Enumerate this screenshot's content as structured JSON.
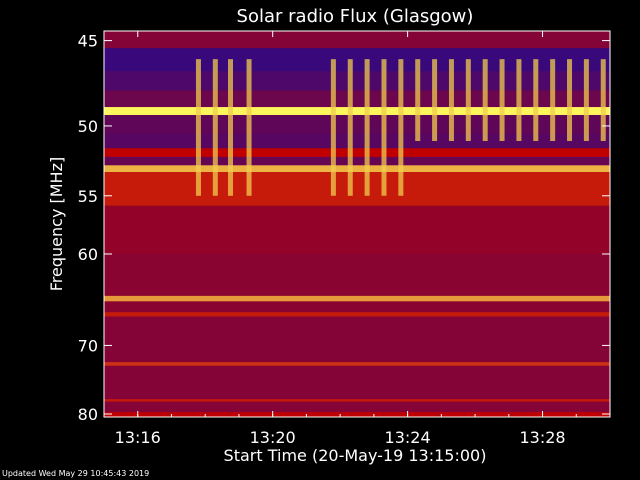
{
  "chart_data": {
    "type": "heatmap",
    "title": "Solar radio Flux (Glasgow)",
    "xlabel": "Start Time (20-May-19 13:15:00)",
    "ylabel": "Frequency [MHz]",
    "x_ticks": [
      "13:16",
      "13:20",
      "13:24",
      "13:28"
    ],
    "x_tick_minutes": [
      16,
      20,
      24,
      28
    ],
    "xlim_minutes": [
      15,
      30
    ],
    "y_ticks": [
      45,
      50,
      55,
      60,
      70,
      80
    ],
    "ylim": [
      44.5,
      80.5
    ],
    "y_scale": "reciprocal",
    "colors": {
      "background": "#000000",
      "low": "#2a0a8a",
      "mid": "#c00000",
      "high": "#ffff60"
    },
    "bands": [
      {
        "from": 45.4,
        "to": 46.7,
        "level": 0.05
      },
      {
        "from": 46.7,
        "to": 47.8,
        "level": 0.12
      },
      {
        "from": 47.8,
        "to": 48.8,
        "level": 0.22
      },
      {
        "from": 48.8,
        "to": 49.3,
        "level": 0.98
      },
      {
        "from": 49.3,
        "to": 50.5,
        "level": 0.18
      },
      {
        "from": 50.5,
        "to": 51.5,
        "level": 0.15
      },
      {
        "from": 51.5,
        "to": 52.1,
        "level": 0.5
      },
      {
        "from": 52.1,
        "to": 52.7,
        "level": 0.2
      },
      {
        "from": 52.7,
        "to": 53.2,
        "level": 0.85
      },
      {
        "from": 53.2,
        "to": 55.8,
        "level": 0.55
      },
      {
        "from": 55.8,
        "to": 60.0,
        "level": 0.35
      },
      {
        "from": 60.0,
        "to": 64.2,
        "level": 0.32
      },
      {
        "from": 64.2,
        "to": 64.8,
        "level": 0.8
      },
      {
        "from": 64.8,
        "to": 66.0,
        "level": 0.32
      },
      {
        "from": 66.0,
        "to": 66.5,
        "level": 0.55
      },
      {
        "from": 66.5,
        "to": 72.2,
        "level": 0.3
      },
      {
        "from": 72.2,
        "to": 72.7,
        "level": 0.6
      },
      {
        "from": 72.7,
        "to": 77.6,
        "level": 0.3
      },
      {
        "from": 77.6,
        "to": 78.0,
        "level": 0.55
      },
      {
        "from": 78.0,
        "to": 79.7,
        "level": 0.3
      },
      {
        "from": 79.7,
        "to": 80.5,
        "level": 0.5
      }
    ],
    "bursts": [
      {
        "minute": 17.8,
        "f_from": 46.0,
        "f_to": 55.0
      },
      {
        "minute": 18.3,
        "f_from": 46.0,
        "f_to": 55.0
      },
      {
        "minute": 18.75,
        "f_from": 46.0,
        "f_to": 55.0
      },
      {
        "minute": 19.3,
        "f_from": 46.0,
        "f_to": 55.0
      },
      {
        "minute": 21.8,
        "f_from": 46.0,
        "f_to": 55.0
      },
      {
        "minute": 22.3,
        "f_from": 46.0,
        "f_to": 55.0
      },
      {
        "minute": 22.8,
        "f_from": 46.0,
        "f_to": 55.0
      },
      {
        "minute": 23.3,
        "f_from": 46.0,
        "f_to": 55.0
      },
      {
        "minute": 23.8,
        "f_from": 46.0,
        "f_to": 55.0
      },
      {
        "minute": 24.3,
        "f_from": 46.0,
        "f_to": 51.0
      },
      {
        "minute": 24.8,
        "f_from": 46.0,
        "f_to": 51.0
      },
      {
        "minute": 25.3,
        "f_from": 46.0,
        "f_to": 51.0
      },
      {
        "minute": 25.8,
        "f_from": 46.0,
        "f_to": 51.0
      },
      {
        "minute": 26.3,
        "f_from": 46.0,
        "f_to": 51.0
      },
      {
        "minute": 26.8,
        "f_from": 46.0,
        "f_to": 51.0
      },
      {
        "minute": 27.3,
        "f_from": 46.0,
        "f_to": 51.0
      },
      {
        "minute": 27.8,
        "f_from": 46.0,
        "f_to": 51.0
      },
      {
        "minute": 28.3,
        "f_from": 46.0,
        "f_to": 51.0
      },
      {
        "minute": 28.8,
        "f_from": 46.0,
        "f_to": 51.0
      },
      {
        "minute": 29.3,
        "f_from": 46.0,
        "f_to": 51.0
      },
      {
        "minute": 29.8,
        "f_from": 46.0,
        "f_to": 51.0
      }
    ]
  },
  "footer": {
    "updated": "Updated Wed May 29 10:45:43 2019"
  }
}
